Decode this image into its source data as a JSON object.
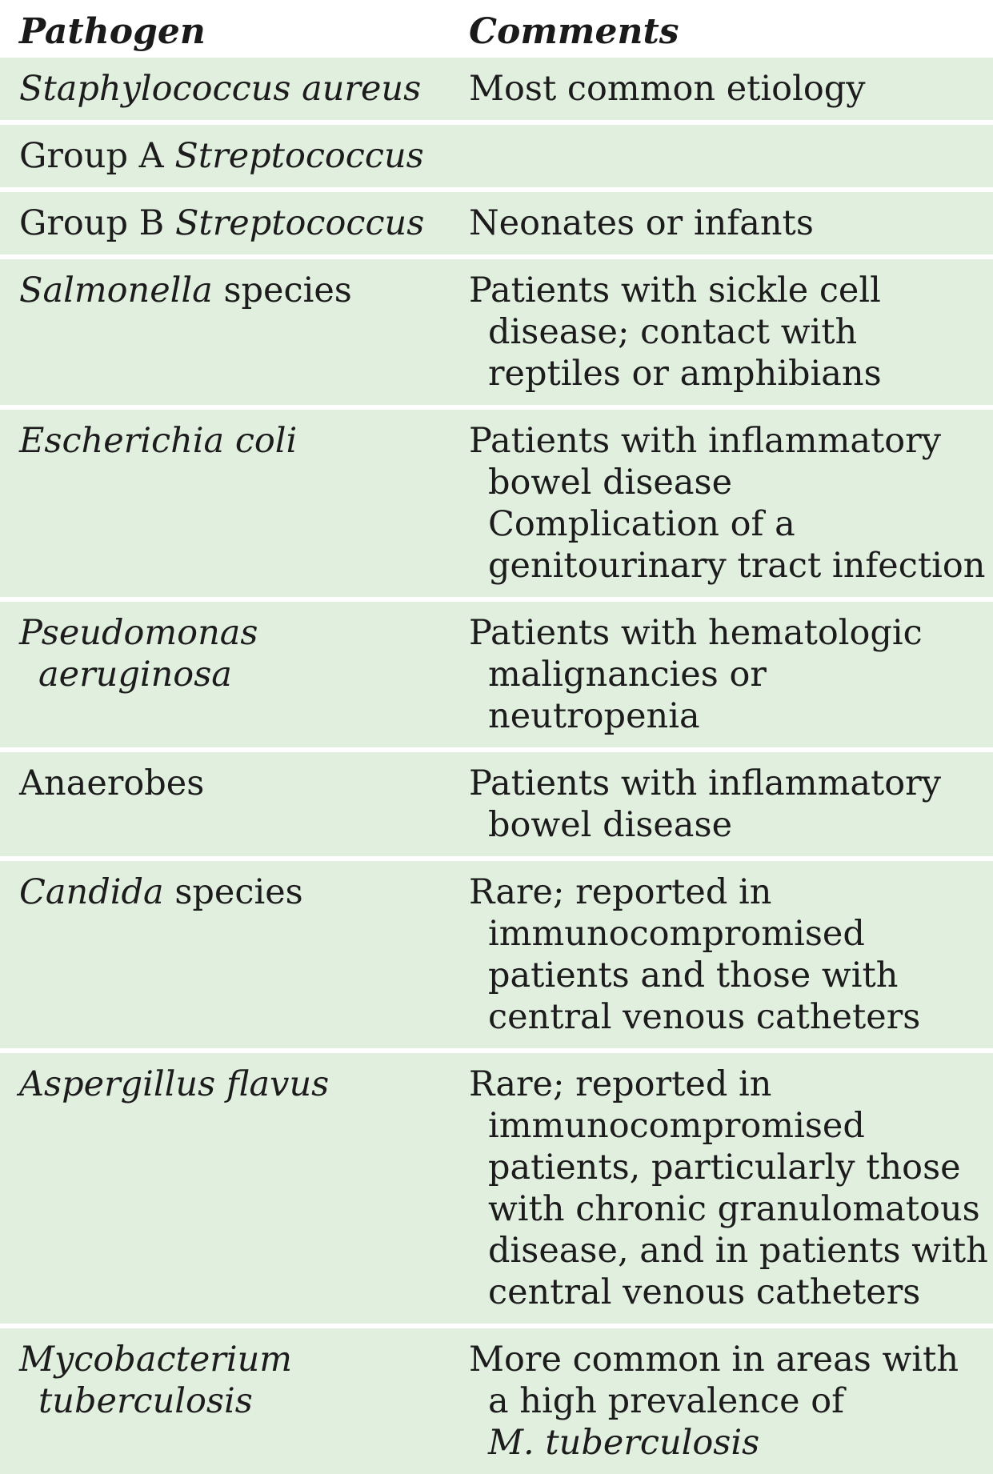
{
  "header": {
    "pathogen": "Pathogen",
    "comments": "Comments"
  },
  "rows": [
    {
      "pathogen": [
        [
          {
            "t": "Staphylococcus aureus",
            "i": true
          }
        ]
      ],
      "comments": [
        [
          {
            "t": "Most common etiology",
            "i": false
          }
        ]
      ]
    },
    {
      "pathogen": [
        [
          {
            "t": "Group A ",
            "i": false
          },
          {
            "t": "Streptococcus",
            "i": true
          }
        ]
      ],
      "comments": []
    },
    {
      "pathogen": [
        [
          {
            "t": "Group B ",
            "i": false
          },
          {
            "t": "Streptococcus",
            "i": true
          }
        ]
      ],
      "comments": [
        [
          {
            "t": "Neonates or infants",
            "i": false
          }
        ]
      ]
    },
    {
      "pathogen": [
        [
          {
            "t": "Salmonella",
            "i": true
          },
          {
            "t": " species",
            "i": false
          }
        ]
      ],
      "comments": [
        [
          {
            "t": "Patients with sickle cell",
            "i": false
          }
        ],
        [
          {
            "t": "disease; contact with",
            "i": false
          }
        ],
        [
          {
            "t": "reptiles or amphibians",
            "i": false
          }
        ]
      ]
    },
    {
      "pathogen": [
        [
          {
            "t": "Escherichia coli",
            "i": true
          }
        ]
      ],
      "comments": [
        [
          {
            "t": "Patients with inflammatory",
            "i": false
          }
        ],
        [
          {
            "t": "bowel disease",
            "i": false
          }
        ],
        [
          {
            "t": "Complication of a",
            "i": false
          }
        ],
        [
          {
            "t": "genitourinary tract infection",
            "i": false
          }
        ]
      ]
    },
    {
      "pathogen": [
        [
          {
            "t": "Pseudomonas",
            "i": true
          }
        ],
        [
          {
            "t": "aeruginosa",
            "i": true
          }
        ]
      ],
      "comments": [
        [
          {
            "t": "Patients with hematologic",
            "i": false
          }
        ],
        [
          {
            "t": "malignancies or",
            "i": false
          }
        ],
        [
          {
            "t": "neutropenia",
            "i": false
          }
        ]
      ]
    },
    {
      "pathogen": [
        [
          {
            "t": "Anaerobes",
            "i": false
          }
        ]
      ],
      "comments": [
        [
          {
            "t": "Patients with inflammatory",
            "i": false
          }
        ],
        [
          {
            "t": "bowel disease",
            "i": false
          }
        ]
      ]
    },
    {
      "pathogen": [
        [
          {
            "t": "Candida",
            "i": true
          },
          {
            "t": " species",
            "i": false
          }
        ]
      ],
      "comments": [
        [
          {
            "t": "Rare; reported in",
            "i": false
          }
        ],
        [
          {
            "t": "immunocompromised",
            "i": false
          }
        ],
        [
          {
            "t": "patients and those with",
            "i": false
          }
        ],
        [
          {
            "t": "central venous catheters",
            "i": false
          }
        ]
      ]
    },
    {
      "pathogen": [
        [
          {
            "t": "Aspergillus flavus",
            "i": true
          }
        ]
      ],
      "comments": [
        [
          {
            "t": "Rare; reported in",
            "i": false
          }
        ],
        [
          {
            "t": "immunocompromised",
            "i": false
          }
        ],
        [
          {
            "t": "patients, particularly those",
            "i": false
          }
        ],
        [
          {
            "t": "with chronic granulomatous",
            "i": false
          }
        ],
        [
          {
            "t": "disease, and in patients with",
            "i": false
          }
        ],
        [
          {
            "t": "central venous catheters",
            "i": false
          }
        ]
      ]
    },
    {
      "pathogen": [
        [
          {
            "t": "Mycobacterium",
            "i": true
          }
        ],
        [
          {
            "t": "tuberculosis",
            "i": true
          }
        ]
      ],
      "comments": [
        [
          {
            "t": "More common in areas with",
            "i": false
          }
        ],
        [
          {
            "t": "a high prevalence of",
            "i": false
          }
        ],
        [
          {
            "t": "M. tuberculosis",
            "i": true
          }
        ]
      ]
    }
  ]
}
